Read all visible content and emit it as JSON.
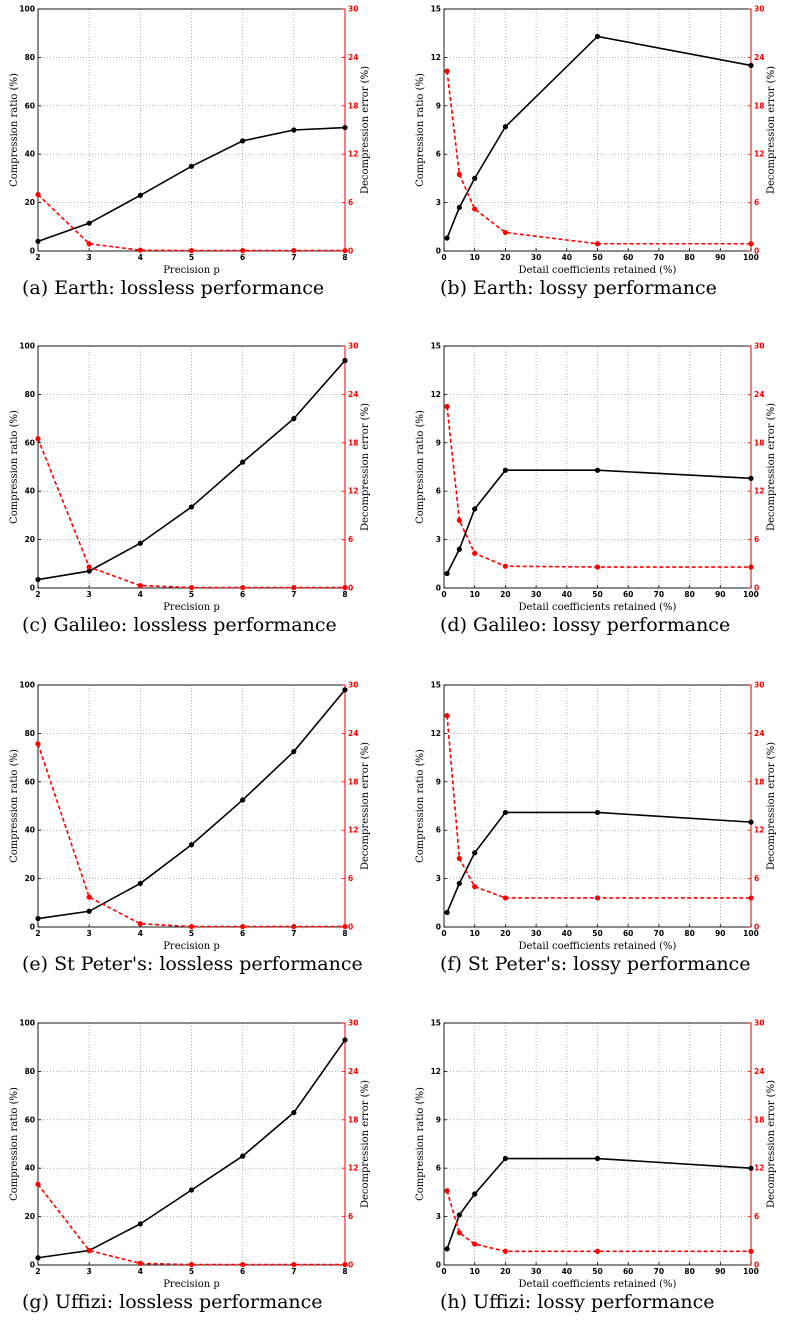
{
  "figure": {
    "panels": [
      {
        "caption": "(a)  Earth: lossless performance",
        "chart_data": {
          "type": "line",
          "xlabel": "Precision p",
          "ylabel": "Compression ratio (%)",
          "y2label": "Decompression error (%)",
          "x": [
            2,
            3,
            4,
            5,
            6,
            7,
            8
          ],
          "xlim": [
            2,
            8
          ],
          "xticks": [
            2,
            3,
            4,
            5,
            6,
            7,
            8
          ],
          "ylim": [
            0,
            100
          ],
          "yticks": [
            0,
            20,
            40,
            60,
            80,
            100
          ],
          "y2lim": [
            0,
            30
          ],
          "y2ticks": [
            0,
            6,
            12,
            18,
            24,
            30
          ],
          "grid": true,
          "series": [
            {
              "axis": "left",
              "color": "#000000",
              "style": "solid",
              "values": [
                4.0,
                11.5,
                23.0,
                35.0,
                45.5,
                50.0,
                51.0
              ]
            },
            {
              "axis": "right",
              "color": "#ff0000",
              "style": "dashed",
              "values": [
                7.0,
                0.9,
                0.1,
                0.05,
                0.05,
                0.05,
                0.05
              ]
            }
          ]
        }
      },
      {
        "caption": "(b)  Earth: lossy performance",
        "chart_data": {
          "type": "line",
          "xlabel": "Detail coefficients retained (%)",
          "ylabel": "Compression ratio (%)",
          "y2label": "Decompression error (%)",
          "x": [
            1,
            5,
            10,
            20,
            50,
            100
          ],
          "xlim": [
            0,
            100
          ],
          "xticks": [
            0,
            10,
            20,
            30,
            40,
            50,
            60,
            70,
            80,
            90,
            100
          ],
          "ylim": [
            0,
            15
          ],
          "yticks": [
            0,
            3,
            6,
            9,
            12,
            15
          ],
          "y2lim": [
            0,
            30
          ],
          "y2ticks": [
            0,
            6,
            12,
            18,
            24,
            30
          ],
          "grid": true,
          "series": [
            {
              "axis": "left",
              "color": "#000000",
              "style": "solid",
              "values": [
                0.8,
                2.7,
                4.5,
                7.7,
                13.3,
                11.5
              ]
            },
            {
              "axis": "right",
              "color": "#ff0000",
              "style": "dashed",
              "values": [
                22.3,
                9.5,
                5.2,
                2.3,
                0.9,
                0.9
              ]
            }
          ]
        }
      },
      {
        "caption": "(c)  Galileo: lossless performance",
        "chart_data": {
          "type": "line",
          "xlabel": "Precision p",
          "ylabel": "Compression ratio (%)",
          "y2label": "Decompression error (%)",
          "x": [
            2,
            3,
            4,
            5,
            6,
            7,
            8
          ],
          "xlim": [
            2,
            8
          ],
          "xticks": [
            2,
            3,
            4,
            5,
            6,
            7,
            8
          ],
          "ylim": [
            0,
            100
          ],
          "yticks": [
            0,
            20,
            40,
            60,
            80,
            100
          ],
          "y2lim": [
            0,
            30
          ],
          "y2ticks": [
            0,
            6,
            12,
            18,
            24,
            30
          ],
          "grid": true,
          "series": [
            {
              "axis": "left",
              "color": "#000000",
              "style": "solid",
              "values": [
                3.5,
                7.0,
                18.5,
                33.5,
                52.0,
                70.0,
                94.0
              ]
            },
            {
              "axis": "right",
              "color": "#ff0000",
              "style": "dashed",
              "values": [
                18.5,
                2.6,
                0.3,
                0.05,
                0.05,
                0.05,
                0.05
              ]
            }
          ]
        }
      },
      {
        "caption": "(d)  Galileo: lossy performance",
        "chart_data": {
          "type": "line",
          "xlabel": "Detail coefficients retained (%)",
          "ylabel": "Compression ratio (%)",
          "y2label": "Decompression error (%)",
          "x": [
            1,
            5,
            10,
            20,
            50,
            100
          ],
          "xlim": [
            0,
            100
          ],
          "xticks": [
            0,
            10,
            20,
            30,
            40,
            50,
            60,
            70,
            80,
            90,
            100
          ],
          "ylim": [
            0,
            15
          ],
          "yticks": [
            0,
            3,
            6,
            9,
            12,
            15
          ],
          "y2lim": [
            0,
            30
          ],
          "y2ticks": [
            0,
            6,
            12,
            18,
            24,
            30
          ],
          "grid": true,
          "series": [
            {
              "axis": "left",
              "color": "#000000",
              "style": "solid",
              "values": [
                0.9,
                2.4,
                4.9,
                7.3,
                7.3,
                6.8
              ]
            },
            {
              "axis": "right",
              "color": "#ff0000",
              "style": "dashed",
              "values": [
                22.5,
                8.4,
                4.3,
                2.7,
                2.6,
                2.6
              ]
            }
          ]
        }
      },
      {
        "caption": "(e)  St Peter's: lossless performance",
        "chart_data": {
          "type": "line",
          "xlabel": "Precision p",
          "ylabel": "Compression ratio (%)",
          "y2label": "Decompression error (%)",
          "x": [
            2,
            3,
            4,
            5,
            6,
            7,
            8
          ],
          "xlim": [
            2,
            8
          ],
          "xticks": [
            2,
            3,
            4,
            5,
            6,
            7,
            8
          ],
          "ylim": [
            0,
            100
          ],
          "yticks": [
            0,
            20,
            40,
            60,
            80,
            100
          ],
          "y2lim": [
            0,
            30
          ],
          "y2ticks": [
            0,
            6,
            12,
            18,
            24,
            30
          ],
          "grid": true,
          "series": [
            {
              "axis": "left",
              "color": "#000000",
              "style": "solid",
              "values": [
                3.5,
                6.5,
                18.0,
                34.0,
                52.5,
                72.5,
                98.0
              ]
            },
            {
              "axis": "right",
              "color": "#ff0000",
              "style": "dashed",
              "values": [
                22.7,
                3.7,
                0.4,
                0.05,
                0.05,
                0.05,
                0.05
              ]
            }
          ]
        }
      },
      {
        "caption": "(f)  St Peter's: lossy performance",
        "chart_data": {
          "type": "line",
          "xlabel": "Detail coefficients retained (%)",
          "ylabel": "Compression ratio (%)",
          "y2label": "Decompression error (%)",
          "x": [
            1,
            5,
            10,
            20,
            50,
            100
          ],
          "xlim": [
            0,
            100
          ],
          "xticks": [
            0,
            10,
            20,
            30,
            40,
            50,
            60,
            70,
            80,
            90,
            100
          ],
          "ylim": [
            0,
            15
          ],
          "yticks": [
            0,
            3,
            6,
            9,
            12,
            15
          ],
          "y2lim": [
            0,
            30
          ],
          "y2ticks": [
            0,
            6,
            12,
            18,
            24,
            30
          ],
          "grid": true,
          "series": [
            {
              "axis": "left",
              "color": "#000000",
              "style": "solid",
              "values": [
                0.9,
                2.7,
                4.6,
                7.1,
                7.1,
                6.5
              ]
            },
            {
              "axis": "right",
              "color": "#ff0000",
              "style": "dashed",
              "values": [
                26.2,
                8.5,
                5.0,
                3.6,
                3.6,
                3.6
              ]
            }
          ]
        }
      },
      {
        "caption": "(g)  Uffizi: lossless performance",
        "chart_data": {
          "type": "line",
          "xlabel": "Precision p",
          "ylabel": "Compression ratio (%)",
          "y2label": "Decompression error (%)",
          "x": [
            2,
            3,
            4,
            5,
            6,
            7,
            8
          ],
          "xlim": [
            2,
            8
          ],
          "xticks": [
            2,
            3,
            4,
            5,
            6,
            7,
            8
          ],
          "ylim": [
            0,
            100
          ],
          "yticks": [
            0,
            20,
            40,
            60,
            80,
            100
          ],
          "y2lim": [
            0,
            30
          ],
          "y2ticks": [
            0,
            6,
            12,
            18,
            24,
            30
          ],
          "grid": true,
          "series": [
            {
              "axis": "left",
              "color": "#000000",
              "style": "solid",
              "values": [
                3.0,
                6.0,
                17.0,
                31.0,
                45.0,
                63.0,
                93.0
              ]
            },
            {
              "axis": "right",
              "color": "#ff0000",
              "style": "dashed",
              "values": [
                10.0,
                1.8,
                0.2,
                0.05,
                0.05,
                0.05,
                0.05
              ]
            }
          ]
        }
      },
      {
        "caption": "(h)  Uffizi: lossy performance",
        "chart_data": {
          "type": "line",
          "xlabel": "Detail coefficients retained (%)",
          "ylabel": "Compression ratio (%)",
          "y2label": "Decompression error (%)",
          "x": [
            1,
            5,
            10,
            20,
            50,
            100
          ],
          "xlim": [
            0,
            100
          ],
          "xticks": [
            0,
            10,
            20,
            30,
            40,
            50,
            60,
            70,
            80,
            90,
            100
          ],
          "ylim": [
            0,
            15
          ],
          "yticks": [
            0,
            3,
            6,
            9,
            12,
            15
          ],
          "y2lim": [
            0,
            30
          ],
          "y2ticks": [
            0,
            6,
            12,
            18,
            24,
            30
          ],
          "grid": true,
          "series": [
            {
              "axis": "left",
              "color": "#000000",
              "style": "solid",
              "values": [
                1.0,
                3.1,
                4.4,
                6.6,
                6.6,
                6.0
              ]
            },
            {
              "axis": "right",
              "color": "#ff0000",
              "style": "dashed",
              "values": [
                9.2,
                4.0,
                2.6,
                1.7,
                1.7,
                1.7
              ]
            }
          ]
        }
      }
    ]
  }
}
